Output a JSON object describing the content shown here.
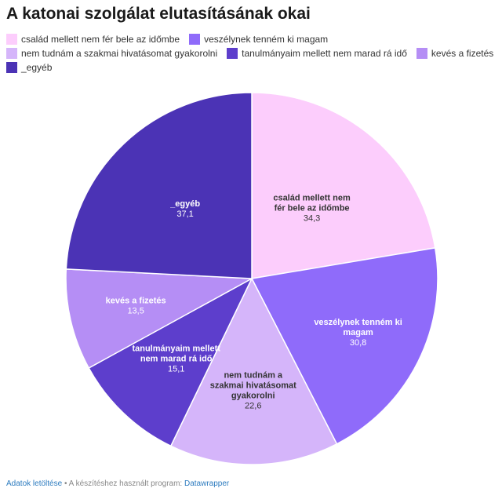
{
  "title": "A katonai szolgálat elutasításának okai",
  "footer": {
    "download_link": "Adatok letöltése",
    "separator": " • A készítéshez használt program: ",
    "tool_link": "Datawrapper"
  },
  "chart_data": {
    "type": "pie",
    "title": "A katonai szolgálat elutasításának okai",
    "legend_position": "top-left",
    "slices": [
      {
        "label": "család mellett nem fér bele az időmbe",
        "value": 34.3,
        "value_label": "34,3",
        "color": "#fccdfc",
        "text_color": "#333333"
      },
      {
        "label": "veszélynek tenném ki magam",
        "value": 30.8,
        "value_label": "30,8",
        "color": "#8f6bfa",
        "text_color": "#ffffff"
      },
      {
        "label": "nem tudnám a szakmai hivatásomat gyakorolni",
        "value": 22.6,
        "value_label": "22,6",
        "color": "#d5b5fa",
        "text_color": "#333333"
      },
      {
        "label": "tanulmányaim mellett nem marad rá idő",
        "value": 15.1,
        "value_label": "15,1",
        "color": "#5d3ecc",
        "text_color": "#ffffff"
      },
      {
        "label": "kevés a fizetés",
        "value": 13.5,
        "value_label": "13,5",
        "color": "#b58ef5",
        "text_color": "#ffffff"
      },
      {
        "label": "_egyéb",
        "value": 37.1,
        "value_label": "37,1",
        "color": "#4b33b5",
        "text_color": "#ffffff"
      }
    ]
  }
}
